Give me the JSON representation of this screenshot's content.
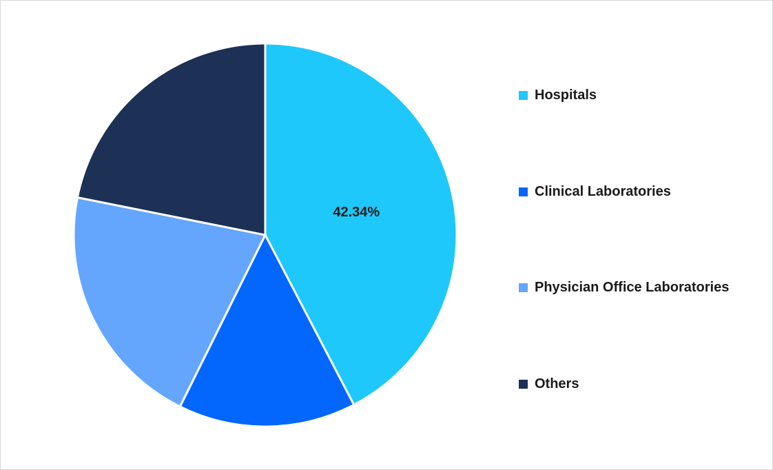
{
  "chart_data": {
    "type": "pie",
    "title": "",
    "categories": [
      "Hospitals",
      "Clinical Laboratories",
      "Physician Office Laboratories",
      "Others"
    ],
    "values": [
      42.34,
      15.0,
      20.8,
      21.86
    ],
    "value_labels": [
      "42.34%",
      "",
      "",
      ""
    ],
    "colors": [
      "#1ec8fa",
      "#0366fd",
      "#64a6fd",
      "#1d3055"
    ],
    "legend_position": "right",
    "start_angle": "12 o'clock",
    "direction": "clockwise"
  },
  "legend": {
    "items": [
      {
        "label": "Hospitals",
        "color": "#1ec8fa"
      },
      {
        "label": "Clinical Laboratories",
        "color": "#0366fd"
      },
      {
        "label": "Physician Office Laboratories",
        "color": "#64a6fd"
      },
      {
        "label": "Others",
        "color": "#1d3055"
      }
    ]
  }
}
